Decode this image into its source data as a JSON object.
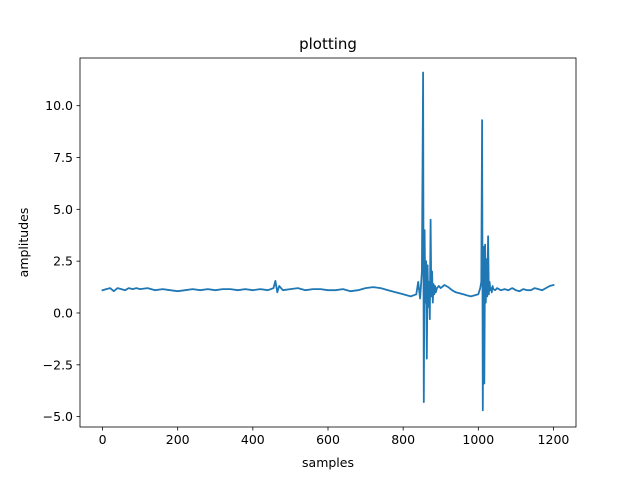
{
  "chart_data": {
    "type": "line",
    "title": "plotting",
    "xlabel": "samples",
    "ylabel": "amplitudes",
    "xlim": [
      -60,
      1260
    ],
    "ylim": [
      -5.5,
      12.3
    ],
    "xticks": [
      0,
      200,
      400,
      600,
      800,
      1000,
      1200
    ],
    "xtick_labels": [
      "0",
      "200",
      "400",
      "600",
      "800",
      "1000",
      "1200"
    ],
    "yticks": [
      -5.0,
      -2.5,
      0.0,
      2.5,
      5.0,
      7.5,
      10.0
    ],
    "ytick_labels": [
      "−5.0",
      "−2.5",
      "0.0",
      "2.5",
      "5.0",
      "7.5",
      "10.0"
    ],
    "grid": false,
    "series": [
      {
        "color": "#1f77b4",
        "x": [
          0,
          10,
          20,
          30,
          40,
          50,
          60,
          70,
          80,
          90,
          100,
          120,
          140,
          160,
          180,
          200,
          220,
          240,
          260,
          280,
          300,
          320,
          340,
          360,
          380,
          400,
          420,
          440,
          455,
          460,
          465,
          470,
          480,
          500,
          520,
          540,
          560,
          580,
          600,
          620,
          640,
          660,
          680,
          700,
          720,
          740,
          760,
          780,
          800,
          820,
          835,
          840,
          845,
          850,
          853,
          855,
          857,
          859,
          861,
          863,
          865,
          867,
          869,
          871,
          873,
          875,
          877,
          879,
          881,
          883,
          885,
          887,
          890,
          895,
          900,
          910,
          920,
          930,
          940,
          950,
          960,
          970,
          980,
          990,
          1000,
          1005,
          1008,
          1010,
          1012,
          1014,
          1016,
          1018,
          1020,
          1022,
          1024,
          1026,
          1028,
          1030,
          1032,
          1034,
          1036,
          1038,
          1040,
          1045,
          1050,
          1060,
          1070,
          1080,
          1090,
          1100,
          1110,
          1120,
          1130,
          1140,
          1150,
          1160,
          1170,
          1180,
          1190,
          1200
        ],
        "y": [
          1.1,
          1.15,
          1.2,
          1.05,
          1.2,
          1.15,
          1.1,
          1.2,
          1.15,
          1.2,
          1.15,
          1.2,
          1.1,
          1.15,
          1.1,
          1.05,
          1.1,
          1.15,
          1.1,
          1.15,
          1.1,
          1.15,
          1.15,
          1.1,
          1.15,
          1.1,
          1.15,
          1.1,
          1.2,
          1.55,
          1.0,
          1.3,
          1.1,
          1.15,
          1.2,
          1.1,
          1.15,
          1.15,
          1.1,
          1.1,
          1.15,
          1.05,
          1.1,
          1.2,
          1.25,
          1.2,
          1.1,
          1.0,
          0.9,
          0.8,
          0.9,
          1.5,
          0.7,
          2.0,
          11.6,
          -4.3,
          4.0,
          0.5,
          2.5,
          -2.2,
          2.3,
          0.3,
          1.5,
          -0.3,
          4.5,
          0.8,
          2.0,
          0.5,
          1.4,
          0.9,
          1.3,
          1.0,
          1.2,
          1.3,
          1.2,
          1.35,
          1.25,
          1.1,
          1.0,
          0.95,
          0.9,
          0.85,
          0.8,
          0.85,
          0.9,
          1.2,
          1.5,
          9.3,
          -4.7,
          3.2,
          -3.4,
          3.3,
          0.5,
          2.6,
          0.8,
          3.7,
          0.9,
          1.5,
          1.1,
          1.2,
          1.0,
          1.3,
          1.15,
          1.1,
          1.2,
          1.1,
          1.15,
          1.1,
          1.2,
          1.1,
          1.05,
          1.15,
          1.1,
          1.1,
          1.2,
          1.15,
          1.1,
          1.2,
          1.3,
          1.35
        ]
      }
    ]
  }
}
